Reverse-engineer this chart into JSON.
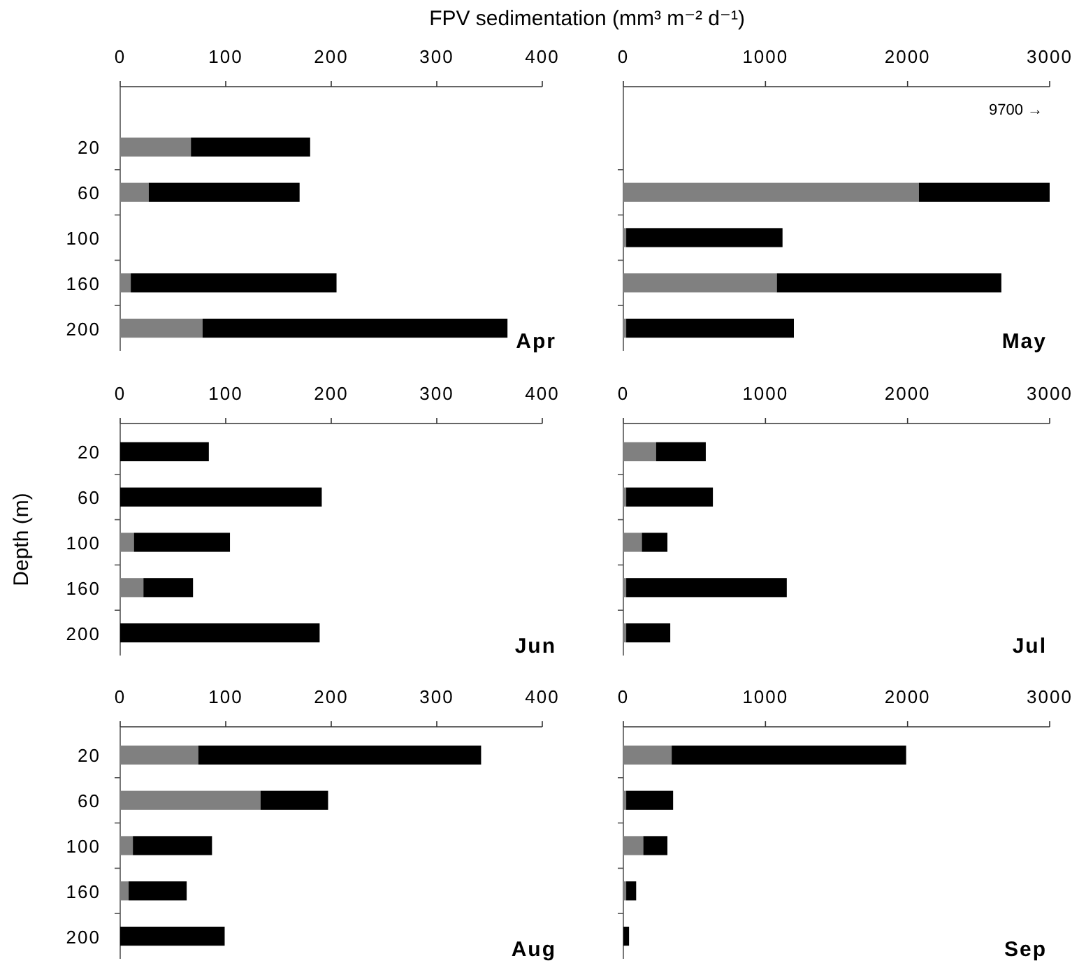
{
  "chart_data": [
    {
      "type": "bar",
      "orientation": "horizontal",
      "stacked": true,
      "title": "Apr",
      "xlabel": "FPV sedimentation (mm³ m⁻² d⁻¹)",
      "categories": [
        "20",
        "60",
        "100",
        "160",
        "200"
      ],
      "xlim": [
        0,
        400
      ],
      "xticks": [
        0,
        100,
        200,
        300,
        400
      ],
      "grid": false,
      "series": [
        {
          "color": "#808080",
          "values": [
            67,
            27,
            null,
            10,
            78
          ]
        },
        {
          "color": "#000000",
          "values": [
            113,
            143,
            null,
            195,
            289
          ]
        }
      ]
    },
    {
      "type": "bar",
      "orientation": "horizontal",
      "stacked": true,
      "title": "May",
      "categories": [
        "20",
        "60",
        "100",
        "160",
        "200"
      ],
      "xlim": [
        0,
        3000
      ],
      "xticks": [
        0,
        1000,
        2000,
        3000
      ],
      "tick_labels": "x",
      "grid": false,
      "annotations": [
        "9700 →"
      ],
      "series": [
        {
          "color": "#808080",
          "values": [
            null,
            2080,
            20,
            1080,
            20
          ]
        },
        {
          "color": "#000000",
          "values": [
            null,
            920,
            1100,
            1580,
            1180
          ]
        }
      ]
    },
    {
      "type": "bar",
      "orientation": "horizontal",
      "stacked": true,
      "title": "Jun",
      "ylabel": "Depth (m)",
      "categories": [
        "20",
        "60",
        "100",
        "160",
        "200"
      ],
      "xlim": [
        0,
        400
      ],
      "xticks": [
        0,
        100,
        200,
        300,
        400
      ],
      "grid": false,
      "series": [
        {
          "color": "#808080",
          "values": [
            0,
            0,
            13,
            22,
            0
          ]
        },
        {
          "color": "#000000",
          "values": [
            84,
            191,
            91,
            47,
            189
          ]
        }
      ]
    },
    {
      "type": "bar",
      "orientation": "horizontal",
      "stacked": true,
      "title": "Jul",
      "categories": [
        "20",
        "60",
        "100",
        "160",
        "200"
      ],
      "xlim": [
        0,
        3000
      ],
      "xticks": [
        0,
        1000,
        2000,
        3000
      ],
      "tick_labels": "x",
      "grid": false,
      "series": [
        {
          "color": "#808080",
          "values": [
            230,
            20,
            130,
            20,
            20
          ]
        },
        {
          "color": "#000000",
          "values": [
            350,
            610,
            180,
            1130,
            310
          ]
        }
      ]
    },
    {
      "type": "bar",
      "orientation": "horizontal",
      "stacked": true,
      "title": "Aug",
      "categories": [
        "20",
        "60",
        "100",
        "160",
        "200"
      ],
      "xlim": [
        0,
        400
      ],
      "xticks": [
        0,
        100,
        200,
        300,
        400
      ],
      "grid": false,
      "series": [
        {
          "color": "#808080",
          "values": [
            74,
            133,
            12,
            8,
            0
          ]
        },
        {
          "color": "#000000",
          "values": [
            268,
            64,
            75,
            55,
            99
          ]
        }
      ]
    },
    {
      "type": "bar",
      "orientation": "horizontal",
      "stacked": true,
      "title": "Sep",
      "categories": [
        "20",
        "60",
        "100",
        "160",
        "200"
      ],
      "xlim": [
        0,
        3000
      ],
      "xticks": [
        0,
        1000,
        2000,
        3000
      ],
      "tick_labels": "x",
      "grid": false,
      "series": [
        {
          "color": "#808080",
          "values": [
            340,
            20,
            140,
            20,
            0
          ]
        },
        {
          "color": "#000000",
          "values": [
            1650,
            330,
            170,
            70,
            40
          ]
        }
      ]
    }
  ]
}
